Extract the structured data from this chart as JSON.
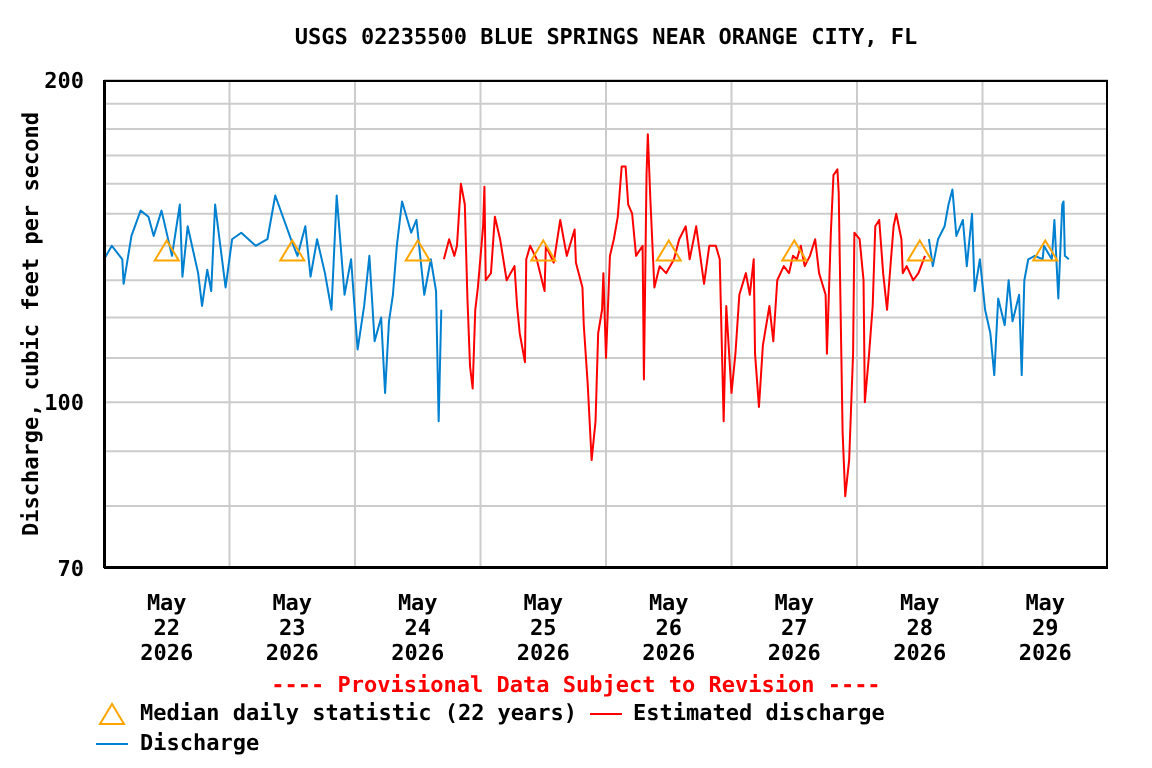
{
  "chart_data": {
    "type": "line",
    "title": "USGS 02235500 BLUE SPRINGS NEAR ORANGE CITY, FL",
    "ylabel": "Discharge, cubic feet per second",
    "annotations": [
      "---- Provisional Data Subject to Revision ----"
    ],
    "log": true,
    "grid": true,
    "legend": "bottom",
    "xlim": [
      "2026-05-22T00:00",
      "2026-05-30T00:00"
    ],
    "xticks": [
      {
        "value": "2026-05-22T12:00",
        "label": "May\n22\n2026"
      },
      {
        "value": "2026-05-23T00:00",
        "label": null
      },
      {
        "value": "2026-05-23T12:00",
        "label": "May\n23\n2026"
      },
      {
        "value": "2026-05-24T00:00",
        "label": null
      },
      {
        "value": "2026-05-24T12:00",
        "label": "May\n24\n2026"
      },
      {
        "value": "2026-05-25T00:00",
        "label": null
      },
      {
        "value": "2026-05-25T12:00",
        "label": "May\n25\n2026"
      },
      {
        "value": "2026-05-26T00:00",
        "label": null
      },
      {
        "value": "2026-05-26T12:00",
        "label": "May\n26\n2026"
      },
      {
        "value": "2026-05-27T00:00",
        "label": null
      },
      {
        "value": "2026-05-27T12:00",
        "label": "May\n27\n2026"
      },
      {
        "value": "2026-05-28T00:00",
        "label": null
      },
      {
        "value": "2026-05-28T12:00",
        "label": "May\n28\n2026"
      },
      {
        "value": "2026-05-29T00:00",
        "label": null
      },
      {
        "value": "2026-05-29T12:00",
        "label": "May\n29\n2026"
      }
    ],
    "ylim": [
      70,
      200
    ],
    "yticks": [
      70,
      {
        "value": 80,
        "label": null
      },
      {
        "value": 90,
        "label": null
      },
      100,
      {
        "value": 110,
        "label": null
      },
      {
        "value": 120,
        "label": null
      },
      {
        "value": 130,
        "label": null
      },
      {
        "value": 140,
        "label": null
      },
      {
        "value": 150,
        "label": null
      },
      {
        "value": 160,
        "label": null
      },
      {
        "value": 170,
        "label": null
      },
      {
        "value": 180,
        "label": null
      },
      {
        "value": 190,
        "label": null
      },
      200
    ],
    "series": [
      {
        "name": "Median daily statistic (22 years)",
        "type": "scatter",
        "marker": "triangle",
        "color": "#ffa500",
        "x": [
          "2026-05-22T12:00",
          "2026-05-23T12:00",
          "2026-05-24T12:00",
          "2026-05-25T12:00",
          "2026-05-26T12:00",
          "2026-05-27T12:00",
          "2026-05-28T12:00",
          "2026-05-29T12:00"
        ],
        "values": [
          138,
          138,
          138,
          138,
          138,
          138,
          138,
          138
        ]
      },
      {
        "name": "Estimated discharge",
        "color": "#ff0000",
        "x": [
          "2026-05-24T17:00",
          "2026-05-24T18:00",
          "2026-05-24T19:00",
          "2026-05-24T19:30",
          "2026-05-24T20:15",
          "2026-05-24T21:00",
          "2026-05-24T21:30",
          "2026-05-24T22:00",
          "2026-05-24T22:30",
          "2026-05-24T23:00",
          "2026-05-24T23:30",
          "2026-05-25T00:30",
          "2026-05-25T00:45",
          "2026-05-25T01:00",
          "2026-05-25T02:00",
          "2026-05-25T02:45",
          "2026-05-25T03:45",
          "2026-05-25T05:00",
          "2026-05-25T06:30",
          "2026-05-25T07:00",
          "2026-05-25T07:30",
          "2026-05-25T08:30",
          "2026-05-25T08:45",
          "2026-05-25T09:30",
          "2026-05-25T10:45",
          "2026-05-25T12:15",
          "2026-05-25T12:30",
          "2026-05-25T14:00",
          "2026-05-25T15:15",
          "2026-05-25T16:30",
          "2026-05-25T18:00",
          "2026-05-25T18:15",
          "2026-05-25T19:30",
          "2026-05-25T19:45",
          "2026-05-25T20:30",
          "2026-05-25T21:15",
          "2026-05-25T22:00",
          "2026-05-25T22:30",
          "2026-05-25T23:15",
          "2026-05-25T23:30",
          "2026-05-26T00:00",
          "2026-05-26T00:45",
          "2026-05-26T01:30",
          "2026-05-26T02:15",
          "2026-05-26T03:00",
          "2026-05-26T03:45",
          "2026-05-26T04:15",
          "2026-05-26T05:00",
          "2026-05-26T05:45",
          "2026-05-26T07:00",
          "2026-05-26T07:15",
          "2026-05-26T07:45",
          "2026-05-26T08:00",
          "2026-05-26T08:30",
          "2026-05-26T09:15",
          "2026-05-26T10:15",
          "2026-05-26T11:30",
          "2026-05-26T13:00",
          "2026-05-26T14:00",
          "2026-05-26T15:15",
          "2026-05-26T16:00",
          "2026-05-26T17:15",
          "2026-05-26T18:45",
          "2026-05-26T19:45",
          "2026-05-26T21:00",
          "2026-05-26T21:45",
          "2026-05-26T22:30",
          "2026-05-26T23:00",
          "2026-05-27T00:00",
          "2026-05-27T00:45",
          "2026-05-27T01:30",
          "2026-05-27T02:45",
          "2026-05-27T03:30",
          "2026-05-27T04:15",
          "2026-05-27T04:30",
          "2026-05-27T05:15",
          "2026-05-27T06:00",
          "2026-05-27T07:15",
          "2026-05-27T08:00",
          "2026-05-27T08:45",
          "2026-05-27T10:00",
          "2026-05-27T11:00",
          "2026-05-27T11:45",
          "2026-05-27T12:30",
          "2026-05-27T13:15",
          "2026-05-27T14:00",
          "2026-05-27T15:00",
          "2026-05-27T16:00",
          "2026-05-27T16:45",
          "2026-05-27T18:00",
          "2026-05-27T18:15",
          "2026-05-27T19:00",
          "2026-05-27T19:30",
          "2026-05-27T20:15",
          "2026-05-27T20:30",
          "2026-05-27T21:00",
          "2026-05-27T21:15",
          "2026-05-27T21:45",
          "2026-05-27T22:30",
          "2026-05-27T23:15",
          "2026-05-27T23:30",
          "2026-05-28T00:30",
          "2026-05-28T01:15",
          "2026-05-28T01:30",
          "2026-05-28T02:15",
          "2026-05-28T03:00",
          "2026-05-28T03:30",
          "2026-05-28T04:15",
          "2026-05-28T05:00",
          "2026-05-28T05:45",
          "2026-05-28T06:30",
          "2026-05-28T07:00",
          "2026-05-28T07:30",
          "2026-05-28T08:30",
          "2026-05-28T08:45",
          "2026-05-28T09:30",
          "2026-05-28T10:45",
          "2026-05-28T11:45",
          "2026-05-28T13:00"
        ],
        "values": [
          136,
          142,
          137,
          140,
          160,
          153,
          125,
          108,
          103,
          122,
          128,
          146,
          159,
          130,
          132,
          149,
          142,
          130,
          134,
          123,
          116,
          109,
          136,
          140,
          136,
          127,
          140,
          135,
          148,
          137,
          145,
          135,
          128,
          118,
          104,
          88.3,
          96,
          116,
          122,
          132,
          110,
          137,
          142,
          149,
          166,
          166,
          153,
          150,
          137,
          140,
          105,
          163,
          178,
          154,
          128,
          134,
          132,
          136,
          142,
          146,
          136,
          146,
          129,
          140,
          140,
          136,
          96,
          123,
          102,
          111,
          126,
          132,
          126,
          136,
          111,
          99,
          113,
          123,
          114,
          130,
          134,
          132,
          137,
          136,
          140,
          134,
          137,
          142,
          132,
          126,
          111,
          144,
          163,
          165,
          157,
          111,
          93.7,
          81.7,
          88.3,
          111,
          144,
          142,
          130,
          100,
          110,
          123,
          146,
          148,
          132,
          122,
          136,
          146,
          150,
          142,
          132,
          134,
          130,
          132,
          137
        ]
      },
      {
        "name": "Discharge",
        "color": "#0080d0",
        "x": [
          "2026-05-22T00:00",
          "2026-05-22T01:30",
          "2026-05-22T03:30",
          "2026-05-22T03:45",
          "2026-05-22T05:15",
          "2026-05-22T07:00",
          "2026-05-22T08:30",
          "2026-05-22T09:30",
          "2026-05-22T11:00",
          "2026-05-22T13:00",
          "2026-05-22T14:30",
          "2026-05-22T15:00",
          "2026-05-22T16:00",
          "2026-05-22T18:00",
          "2026-05-22T18:45",
          "2026-05-22T19:45",
          "2026-05-22T20:30",
          "2026-05-22T21:15",
          "2026-05-22T23:15",
          "2026-05-23T00:30",
          "2026-05-23T02:15",
          "2026-05-23T05:00",
          "2026-05-23T07:15",
          "2026-05-23T08:45",
          "2026-05-23T10:00",
          "2026-05-23T11:45",
          "2026-05-23T13:00",
          "2026-05-23T14:30",
          "2026-05-23T15:30",
          "2026-05-23T16:45",
          "2026-05-23T18:15",
          "2026-05-23T19:30",
          "2026-05-23T20:30",
          "2026-05-23T22:00",
          "2026-05-23T23:15",
          "2026-05-24T00:30",
          "2026-05-24T01:45",
          "2026-05-24T02:45",
          "2026-05-24T03:45",
          "2026-05-24T05:00",
          "2026-05-24T05:45",
          "2026-05-24T06:30",
          "2026-05-24T07:15",
          "2026-05-24T08:00",
          "2026-05-24T09:00",
          "2026-05-24T10:45",
          "2026-05-24T11:45",
          "2026-05-24T13:15",
          "2026-05-24T14:30",
          "2026-05-24T15:30",
          "2026-05-24T16:00",
          "2026-05-24T16:30",
          "2026-05-26T12:00",
          "2026-05-28T13:45",
          "2026-05-28T14:30",
          "2026-05-28T15:30",
          "2026-05-28T16:45",
          "2026-05-28T17:30",
          "2026-05-28T18:15",
          "2026-05-28T19:00",
          "2026-05-28T20:15",
          "2026-05-28T21:00",
          "2026-05-28T22:00",
          "2026-05-28T22:30",
          "2026-05-28T23:30",
          "2026-05-29T00:30",
          "2026-05-29T01:30",
          "2026-05-29T02:15",
          "2026-05-29T03:00",
          "2026-05-29T04:15",
          "2026-05-29T05:00",
          "2026-05-29T05:45",
          "2026-05-29T07:00",
          "2026-05-29T07:30",
          "2026-05-29T08:00",
          "2026-05-29T08:45",
          "2026-05-29T10:00",
          "2026-05-29T11:30",
          "2026-05-29T11:45",
          "2026-05-29T13:15",
          "2026-05-29T13:45",
          "2026-05-29T14:30",
          "2026-05-29T15:15",
          "2026-05-29T15:30",
          "2026-05-29T15:45",
          "2026-05-29T16:30"
        ],
        "values": [
          136,
          140,
          136,
          129,
          143,
          151,
          149,
          143,
          151,
          137,
          153,
          131,
          146,
          132,
          123,
          133,
          127,
          153,
          128,
          142,
          144,
          140,
          142,
          156,
          150,
          142,
          137,
          146,
          131,
          142,
          132,
          122,
          156,
          126,
          136,
          112,
          123,
          137,
          114,
          120,
          102,
          119,
          126,
          140,
          154,
          144,
          148,
          126,
          136,
          127,
          96,
          122,
          null,
          142,
          134,
          142,
          146,
          153,
          158,
          143,
          148,
          134,
          150,
          127,
          136,
          122,
          116,
          106,
          125,
          118,
          130,
          119,
          126,
          106,
          130,
          136,
          137,
          136,
          140,
          136,
          148,
          125,
          153,
          154,
          137,
          136
        ]
      }
    ]
  }
}
